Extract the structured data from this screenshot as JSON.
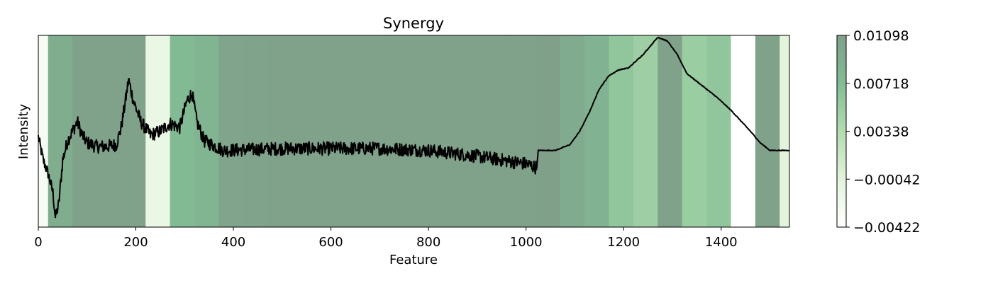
{
  "chart_data": {
    "type": "line",
    "title": "Synergy",
    "xlabel": "Feature",
    "ylabel": "Intensity",
    "xlim": [
      0,
      1540
    ],
    "ylim": [
      0,
      1
    ],
    "xticks": [
      0,
      200,
      400,
      600,
      800,
      1000,
      1200,
      1400
    ],
    "xtick_labels": [
      "0",
      "200",
      "400",
      "600",
      "800",
      "1000",
      "1200",
      "1400"
    ],
    "y_ticks_visible": false,
    "grid": false,
    "background_bands": {
      "band_width": 50,
      "values": [
        -0.003,
        0.0092,
        0.0108,
        0.0109,
        0.0107,
        -0.0015,
        0.0075,
        0.0082,
        0.0104,
        0.0106,
        0.0108,
        0.0108,
        0.0108,
        0.0108,
        0.0108,
        0.0108,
        0.0108,
        0.0108,
        0.0108,
        0.0108,
        0.0108,
        0.011,
        0.0095,
        0.0085,
        0.006,
        0.005,
        0.0109,
        0.0052,
        0.006,
        -0.0042,
        0.0108,
        -0.0005
      ],
      "edges_note": ""
    },
    "colorbar": {
      "min": -0.00422,
      "max": 0.01098,
      "tick_values": [
        0.01098,
        0.00718,
        0.00338,
        -0.00042,
        -0.00422
      ],
      "tick_labels": [
        "0.01098",
        "0.00718",
        "0.00338",
        "−0.00042",
        "−0.00422"
      ],
      "colors": [
        "#ffffff",
        "#e3f4db",
        "#b2dcb0",
        "#82bc94",
        "#80a08a"
      ]
    },
    "series": [
      {
        "color": "#000000",
        "keypoints": [
          [
            0,
            0.47
          ],
          [
            10,
            0.35
          ],
          [
            20,
            0.28
          ],
          [
            30,
            0.18
          ],
          [
            35,
            0.05
          ],
          [
            42,
            0.12
          ],
          [
            50,
            0.35
          ],
          [
            60,
            0.45
          ],
          [
            70,
            0.5
          ],
          [
            80,
            0.55
          ],
          [
            90,
            0.48
          ],
          [
            100,
            0.44
          ],
          [
            120,
            0.42
          ],
          [
            140,
            0.42
          ],
          [
            160,
            0.43
          ],
          [
            170,
            0.52
          ],
          [
            180,
            0.68
          ],
          [
            185,
            0.77
          ],
          [
            195,
            0.66
          ],
          [
            210,
            0.55
          ],
          [
            230,
            0.48
          ],
          [
            250,
            0.5
          ],
          [
            270,
            0.54
          ],
          [
            290,
            0.52
          ],
          [
            305,
            0.66
          ],
          [
            315,
            0.7
          ],
          [
            325,
            0.55
          ],
          [
            340,
            0.45
          ],
          [
            380,
            0.4
          ],
          [
            500,
            0.41
          ],
          [
            700,
            0.41
          ],
          [
            800,
            0.4
          ],
          [
            900,
            0.37
          ],
          [
            1000,
            0.33
          ],
          [
            1022,
            0.31
          ],
          [
            1025,
            0.4
          ],
          [
            1060,
            0.4
          ],
          [
            1090,
            0.43
          ],
          [
            1110,
            0.5
          ],
          [
            1130,
            0.6
          ],
          [
            1150,
            0.72
          ],
          [
            1170,
            0.79
          ],
          [
            1190,
            0.82
          ],
          [
            1210,
            0.83
          ],
          [
            1240,
            0.9
          ],
          [
            1270,
            0.99
          ],
          [
            1290,
            0.97
          ],
          [
            1310,
            0.9
          ],
          [
            1330,
            0.8
          ],
          [
            1360,
            0.74
          ],
          [
            1390,
            0.68
          ],
          [
            1420,
            0.61
          ],
          [
            1460,
            0.5
          ],
          [
            1480,
            0.44
          ],
          [
            1500,
            0.4
          ],
          [
            1540,
            0.4
          ]
        ],
        "noise_regions": [
          {
            "from": 40,
            "to": 1022,
            "amplitude": 0.035
          },
          {
            "from": 0,
            "to": 40,
            "amplitude": 0.03
          }
        ]
      }
    ]
  }
}
